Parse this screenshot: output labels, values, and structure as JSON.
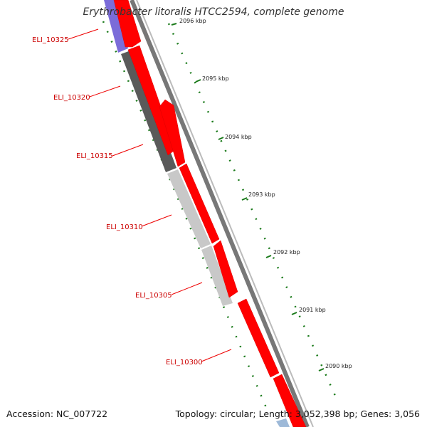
{
  "title": "Erythrobacter litoralis HTCC2594, complete genome",
  "footer": {
    "accession": "Accession: NC_007722",
    "summary": "Topology: circular; Length: 3,052,398 bp; Genes: 3,056"
  },
  "gene_labels": [
    "ELI_10325",
    "ELI_10320",
    "ELI_10315",
    "ELI_10310",
    "ELI_10305",
    "ELI_10300"
  ],
  "kbp_ticks": [
    "2096 kbp",
    "2095 kbp",
    "2094 kbp",
    "2093 kbp",
    "2092 kbp",
    "2091 kbp",
    "2090 kbp"
  ],
  "colors": {
    "gene_label": "#cc0000",
    "cds_feature": "#ff0000",
    "backbone": "#888888",
    "tick_mark": "#1a7a1a",
    "feature_blue": "#7b6cd9",
    "feature_dark_gray": "#5a5a5a",
    "feature_light_gray": "#c8c8c8"
  }
}
